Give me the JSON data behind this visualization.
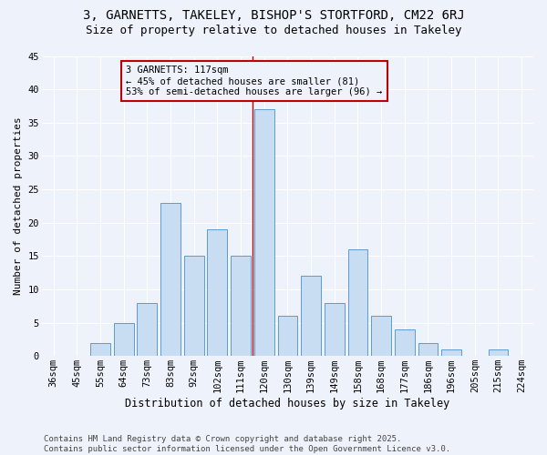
{
  "title1": "3, GARNETTS, TAKELEY, BISHOP'S STORTFORD, CM22 6RJ",
  "title2": "Size of property relative to detached houses in Takeley",
  "xlabel": "Distribution of detached houses by size in Takeley",
  "ylabel": "Number of detached properties",
  "categories": [
    "36sqm",
    "45sqm",
    "55sqm",
    "64sqm",
    "73sqm",
    "83sqm",
    "92sqm",
    "102sqm",
    "111sqm",
    "120sqm",
    "130sqm",
    "139sqm",
    "149sqm",
    "158sqm",
    "168sqm",
    "177sqm",
    "186sqm",
    "196sqm",
    "205sqm",
    "215sqm",
    "224sqm"
  ],
  "values": [
    0,
    0,
    2,
    5,
    8,
    23,
    15,
    19,
    15,
    37,
    6,
    12,
    8,
    16,
    6,
    4,
    2,
    1,
    0,
    1,
    0
  ],
  "bar_color": "#c9ddf2",
  "bar_edge_color": "#5b9bd5",
  "vline_color": "#c00000",
  "vline_x_index": 8.5,
  "annotation_text": "3 GARNETTS: 117sqm\n← 45% of detached houses are smaller (81)\n53% of semi-detached houses are larger (96) →",
  "annotation_box_color": "#c00000",
  "annotation_bg_color": "#eef3fb",
  "ylim": [
    0,
    45
  ],
  "yticks": [
    0,
    5,
    10,
    15,
    20,
    25,
    30,
    35,
    40,
    45
  ],
  "bg_color": "#eef3fb",
  "grid_color": "#ffffff",
  "footer_text": "Contains HM Land Registry data © Crown copyright and database right 2025.\nContains public sector information licensed under the Open Government Licence v3.0.",
  "title1_fontsize": 10,
  "title2_fontsize": 9,
  "xlabel_fontsize": 8.5,
  "ylabel_fontsize": 8,
  "tick_fontsize": 7.5,
  "annotation_fontsize": 7.5,
  "footer_fontsize": 6.5
}
